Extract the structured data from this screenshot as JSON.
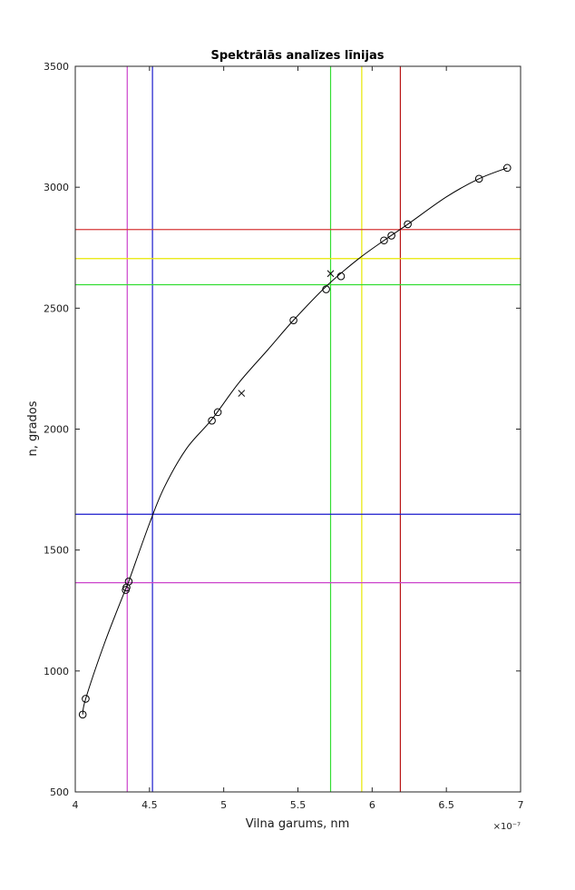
{
  "chart_data": {
    "type": "scatter",
    "title": "Spektrālās analīzes līnijas",
    "xlabel": "Vilna garums, nm",
    "ylabel": "n, grados",
    "x_multiplier": "×10⁻⁷",
    "xlim": [
      4,
      7
    ],
    "ylim": [
      500,
      3500
    ],
    "x_ticks": [
      4,
      4.5,
      5,
      5.5,
      6,
      6.5,
      7
    ],
    "x_tick_labels": [
      "4",
      "4.5",
      "5",
      "5.5",
      "6",
      "6.5",
      "7"
    ],
    "y_ticks": [
      500,
      1000,
      1500,
      2000,
      2500,
      3000,
      3500
    ],
    "y_tick_labels": [
      "500",
      "1000",
      "1500",
      "2000",
      "2500",
      "3000",
      "3500"
    ],
    "grid": false,
    "calibration_points": {
      "marker": "circle",
      "x": [
        4.05,
        4.07,
        4.34,
        4.345,
        4.36,
        4.92,
        4.96,
        5.47,
        5.69,
        5.79,
        6.08,
        6.13,
        6.24,
        6.72,
        6.91
      ],
      "y": [
        820,
        885,
        1335,
        1345,
        1370,
        2035,
        2070,
        2450,
        2578,
        2632,
        2780,
        2800,
        2847,
        3035,
        3080
      ]
    },
    "measured_points": {
      "marker": "x",
      "x": [
        5.12,
        5.72
      ],
      "y": [
        2148,
        2643
      ]
    },
    "fit_curve": {
      "color": "#000000",
      "x": [
        4.05,
        4.07,
        4.2,
        4.34,
        4.36,
        4.5,
        4.6,
        4.75,
        4.92,
        5.1,
        5.3,
        5.47,
        5.69,
        5.9,
        6.08,
        6.24,
        6.5,
        6.72,
        6.91
      ],
      "y": [
        820,
        885,
        1120,
        1340,
        1370,
        1610,
        1760,
        1920,
        2040,
        2190,
        2330,
        2450,
        2590,
        2700,
        2780,
        2847,
        2960,
        3035,
        3080
      ]
    },
    "vertical_lines": [
      {
        "x": 4.35,
        "color": "#cc44cc"
      },
      {
        "x": 4.52,
        "color": "#1a1acc"
      },
      {
        "x": 5.72,
        "color": "#33dd33"
      },
      {
        "x": 5.93,
        "color": "#e8e800"
      },
      {
        "x": 6.19,
        "color": "#b81414"
      }
    ],
    "horizontal_lines": [
      {
        "y": 1365,
        "color": "#cc44cc"
      },
      {
        "y": 1648,
        "color": "#1a1acc"
      },
      {
        "y": 2597,
        "color": "#33dd33"
      },
      {
        "y": 2705,
        "color": "#e8e800"
      },
      {
        "y": 2825,
        "color": "#d63a3a"
      }
    ]
  }
}
